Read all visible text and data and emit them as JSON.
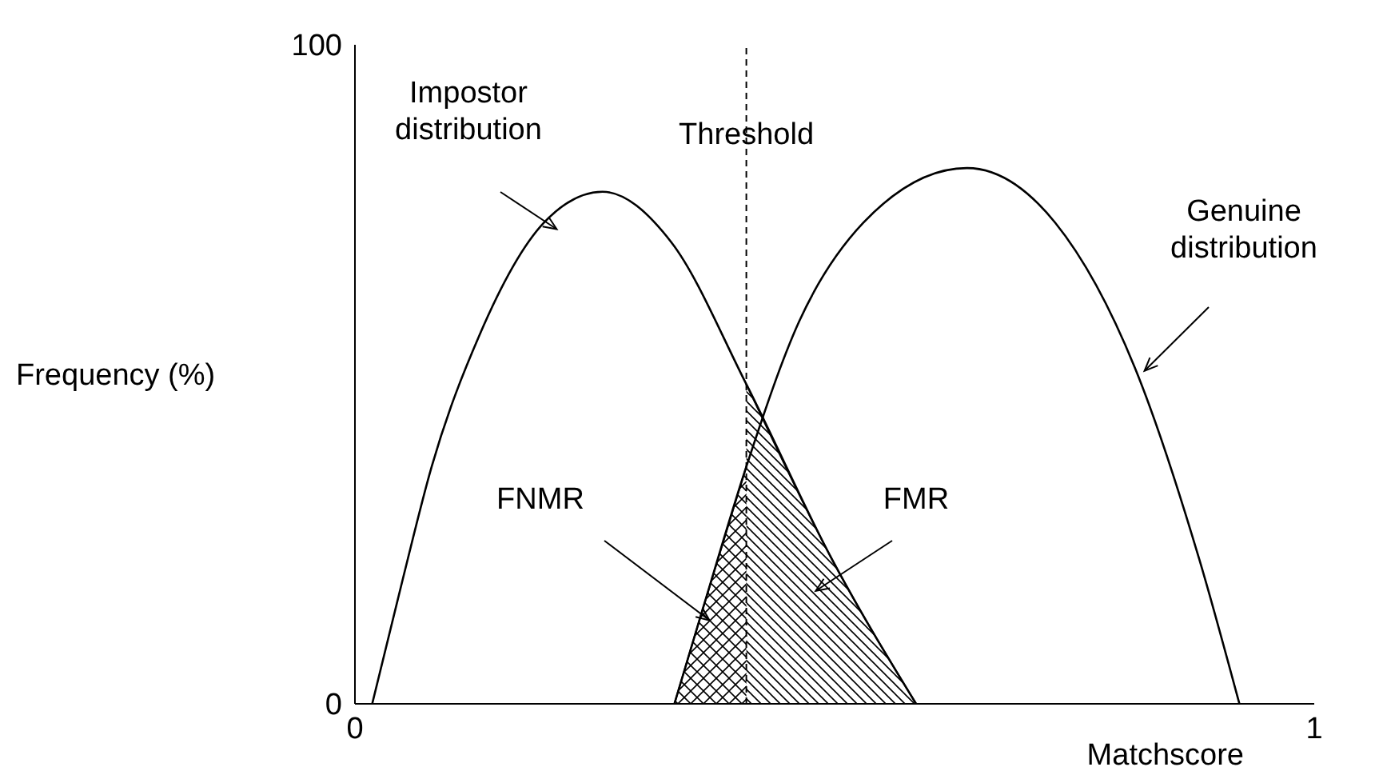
{
  "chart_data": {
    "type": "line",
    "xlabel": "Matchscore",
    "ylabel": "Frequency (%)",
    "xlim": [
      0,
      1
    ],
    "ylim": [
      0,
      100
    ],
    "xticks": [
      0,
      1
    ],
    "yticks": [
      0,
      100
    ],
    "marker": "none",
    "series": [
      {
        "name": "Impostor distribution",
        "color": "#000000",
        "x": [
          0.018,
          0.05,
          0.08,
          0.13,
          0.197,
          0.258,
          0.33,
          0.408,
          0.497,
          0.585
        ],
        "values": [
          0,
          19,
          36,
          56,
          73,
          77.7,
          70,
          48.5,
          22,
          0
        ]
      },
      {
        "name": "Genuine distribution",
        "color": "#000000",
        "x": [
          0.333,
          0.363,
          0.408,
          0.463,
          0.53,
          0.638,
          0.73,
          0.813,
          0.88,
          0.922
        ],
        "values": [
          0,
          14.6,
          36,
          58,
          73,
          81.3,
          73,
          51,
          22,
          0
        ]
      },
      {
        "name": "FNMR",
        "type": "area",
        "color": "#000000",
        "x": [
          0.333,
          0.363,
          0.408
        ],
        "values": [
          0,
          14.6,
          36
        ]
      },
      {
        "name": "FMR",
        "type": "area",
        "color": "#000000",
        "x": [
          0.408,
          0.497,
          0.585
        ],
        "values": [
          48.5,
          22,
          0
        ]
      }
    ],
    "ref_lines": [
      {
        "axis": "x",
        "value": 0.408,
        "label": "Threshold",
        "line_style": "dashed"
      }
    ]
  }
}
